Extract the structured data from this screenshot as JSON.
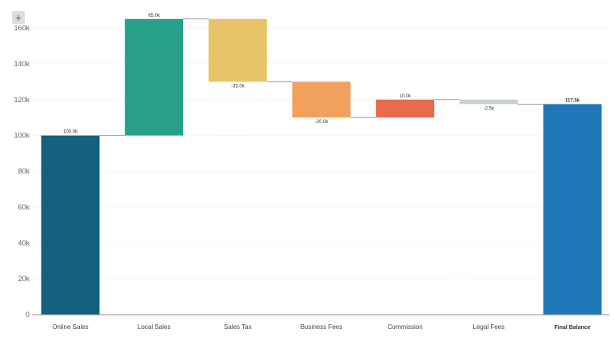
{
  "toolbar": {
    "add_icon": "plus-icon",
    "add_glyph": "+"
  },
  "chart_data": {
    "type": "waterfall",
    "categories": [
      "Online Sales",
      "Local Sales",
      "Sales Tax",
      "Business Fees",
      "Commission",
      "Legal Fees",
      "Final Balance"
    ],
    "values": [
      100000,
      65000,
      -35000,
      -20000,
      10000,
      -2500,
      117500
    ],
    "value_labels": [
      "100.0k",
      "65.0k",
      "-35.0k",
      "-20.0k",
      "10.0k",
      "-2.5k",
      "117.5k"
    ],
    "is_total": [
      false,
      false,
      false,
      false,
      false,
      false,
      true
    ],
    "colors": [
      "#15607e",
      "#26a08b",
      "#e8c46b",
      "#f2a05e",
      "#e86a4a",
      "#c9d1d3",
      "#1f77b8"
    ],
    "ylim": [
      0,
      160000
    ],
    "yticks": [
      0,
      20000,
      40000,
      60000,
      80000,
      100000,
      120000,
      140000,
      160000
    ],
    "ytick_labels": [
      "0",
      "20k",
      "40k",
      "60k",
      "80k",
      "100k",
      "120k",
      "140k",
      "160k"
    ],
    "grid": true
  }
}
